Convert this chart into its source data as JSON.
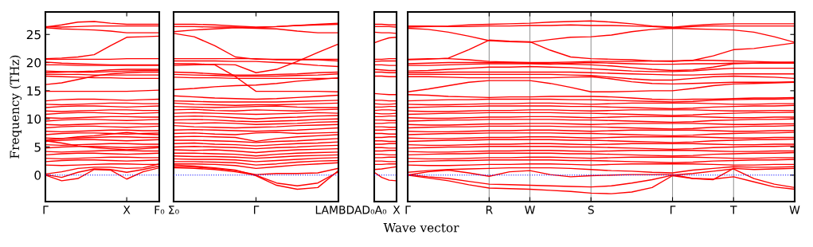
{
  "chart_data": [
    {
      "type": "line",
      "ylabel": "Frequency (THz)",
      "color": "#ff0000",
      "line_style": "solid",
      "marker": "none",
      "tick_labels": true,
      "categories": [
        "Γ",
        null,
        null,
        null,
        null,
        "X",
        null,
        "F₀"
      ],
      "ylim": [
        -4.7,
        29
      ],
      "yticks": [
        0,
        5,
        10,
        15,
        20,
        25
      ],
      "ref_lines": [
        {
          "axis": "y",
          "value": 0,
          "color": "#0000ff",
          "line_style": "dotted"
        }
      ],
      "series": [
        {
          "values": [
            26.3,
            26.7,
            27.2,
            27.3,
            27.0,
            26.8,
            26.8,
            26.8
          ]
        },
        {
          "values": [
            26.4,
            26.3,
            26.4,
            26.5,
            26.5,
            26.5,
            26.5,
            26.5
          ]
        },
        {
          "values": [
            26.2,
            26.0,
            25.9,
            25.8,
            25.6,
            25.3,
            25.3,
            25.3
          ]
        },
        {
          "values": [
            20.7,
            20.8,
            21.0,
            21.4,
            23.0,
            24.5,
            24.6,
            24.7
          ]
        },
        {
          "values": [
            20.6,
            20.6,
            20.6,
            20.6,
            20.6,
            20.7,
            20.7,
            20.7
          ]
        },
        {
          "values": [
            20.1,
            19.9,
            19.8,
            19.7,
            19.6,
            19.6,
            19.6,
            19.6
          ]
        },
        {
          "values": [
            19.6,
            19.6,
            19.5,
            19.5,
            19.5,
            19.5,
            19.5,
            19.5
          ]
        },
        {
          "values": [
            18.5,
            18.4,
            18.3,
            18.3,
            18.4,
            18.5,
            18.6,
            18.6
          ]
        },
        {
          "values": [
            18.2,
            18.3,
            18.4,
            18.5,
            18.7,
            18.8,
            18.8,
            18.8
          ]
        },
        {
          "values": [
            17.9,
            17.9,
            17.9,
            17.8,
            17.8,
            17.8,
            17.8,
            17.8
          ]
        },
        {
          "values": [
            17.6,
            17.5,
            17.4,
            17.3,
            17.3,
            17.2,
            17.2,
            17.2
          ]
        },
        {
          "values": [
            16.1,
            16.4,
            17.0,
            17.6,
            18.0,
            18.2,
            18.3,
            18.3
          ]
        },
        {
          "values": [
            14.9,
            14.9,
            14.9,
            14.9,
            14.9,
            14.9,
            15.0,
            15.1
          ]
        },
        {
          "values": [
            13.2,
            13.4,
            13.5,
            13.5,
            13.4,
            13.3,
            13.4,
            13.5
          ]
        },
        {
          "values": [
            12.6,
            12.5,
            12.6,
            12.7,
            12.8,
            12.8,
            12.7,
            12.7
          ]
        },
        {
          "values": [
            12.0,
            12.2,
            12.3,
            12.3,
            12.2,
            12.1,
            12.2,
            12.3
          ]
        },
        {
          "values": [
            11.4,
            11.3,
            11.4,
            11.5,
            11.6,
            11.6,
            11.5,
            11.5
          ]
        },
        {
          "values": [
            10.8,
            11.0,
            11.1,
            11.1,
            11.0,
            10.9,
            11.0,
            11.1
          ]
        },
        {
          "values": [
            10.2,
            10.1,
            10.2,
            10.3,
            10.4,
            10.4,
            10.3,
            10.3
          ]
        },
        {
          "values": [
            9.6,
            9.8,
            9.9,
            9.9,
            9.8,
            9.7,
            9.8,
            9.9
          ]
        },
        {
          "values": [
            9.0,
            8.9,
            9.0,
            9.1,
            9.2,
            9.2,
            9.1,
            9.1
          ]
        },
        {
          "values": [
            8.4,
            8.6,
            8.7,
            8.7,
            8.6,
            8.5,
            8.6,
            8.7
          ]
        },
        {
          "values": [
            7.8,
            7.7,
            7.8,
            7.9,
            8.0,
            8.0,
            7.9,
            7.9
          ]
        },
        {
          "values": [
            7.2,
            7.4,
            7.5,
            7.5,
            7.4,
            7.3,
            7.4,
            7.5
          ]
        },
        {
          "values": [
            6.6,
            6.5,
            6.6,
            6.7,
            6.8,
            6.8,
            6.7,
            6.7
          ]
        },
        {
          "values": [
            6.0,
            6.2,
            6.3,
            6.3,
            6.2,
            6.1,
            6.2,
            6.3
          ]
        },
        {
          "values": [
            6.2,
            6.5,
            6.8,
            7.0,
            7.3,
            7.6,
            7.3,
            7.2
          ]
        },
        {
          "values": [
            6.1,
            5.7,
            5.2,
            4.9,
            4.7,
            4.5,
            4.7,
            4.9
          ]
        },
        {
          "values": [
            5.4,
            5.3,
            5.4,
            5.5,
            5.6,
            5.6,
            5.5,
            5.5
          ]
        },
        {
          "values": [
            4.8,
            5.0,
            5.1,
            5.1,
            5.0,
            4.9,
            5.0,
            5.1
          ]
        },
        {
          "values": [
            4.2,
            4.1,
            4.2,
            4.3,
            4.4,
            4.4,
            4.3,
            4.3
          ]
        },
        {
          "values": [
            3.6,
            3.8,
            3.9,
            3.9,
            3.8,
            3.7,
            3.8,
            3.9
          ]
        },
        {
          "values": [
            3.0,
            2.9,
            3.0,
            3.1,
            3.2,
            3.2,
            3.1,
            3.1
          ]
        },
        {
          "values": [
            2.4,
            2.6,
            2.7,
            2.7,
            2.6,
            2.5,
            2.6,
            2.7
          ]
        },
        {
          "values": [
            1.8,
            1.7,
            1.8,
            1.9,
            2.0,
            2.0,
            1.9,
            1.9
          ]
        },
        {
          "values": [
            0,
            -1.0,
            -0.6,
            1.0,
            0.9,
            -0.7,
            0.6,
            1.3
          ]
        },
        {
          "values": [
            0.1,
            -0.4,
            0.5,
            1.1,
            1.0,
            0.5,
            1.0,
            1.6
          ]
        },
        {
          "values": [
            0.2,
            0.6,
            1.2,
            1.4,
            1.4,
            1.2,
            1.3,
            2.0
          ]
        }
      ]
    },
    {
      "type": "line",
      "color": "#ff0000",
      "line_style": "solid",
      "marker": "none",
      "tick_labels": "x",
      "categories": [
        "Σ₀",
        null,
        null,
        null,
        "Γ",
        null,
        null,
        null,
        "LAMBDA"
      ],
      "ylim": [
        -4.7,
        29
      ],
      "yticks": [
        0,
        5,
        10,
        15,
        20,
        25
      ],
      "ref_lines": [
        {
          "axis": "y",
          "value": 0,
          "color": "#0000ff",
          "line_style": "dotted"
        }
      ],
      "series": [
        {
          "values": [
            26.8,
            26.8,
            26.7,
            26.5,
            26.3,
            26.4,
            26.6,
            26.8,
            27.0
          ]
        },
        {
          "values": [
            26.4,
            26.4,
            26.3,
            26.3,
            26.2,
            26.4,
            26.6,
            26.7,
            26.8
          ]
        },
        {
          "values": [
            25.5,
            25.8,
            26.0,
            26.2,
            26.1,
            26.0,
            25.6,
            25.3,
            25.3
          ]
        },
        {
          "values": [
            25.2,
            24.6,
            23.0,
            21.0,
            20.6,
            20.6,
            20.6,
            20.6,
            20.6
          ]
        },
        {
          "values": [
            20.7,
            20.7,
            20.7,
            20.7,
            20.7,
            20.5,
            20.5,
            20.5,
            20.3
          ]
        },
        {
          "values": [
            20.3,
            20.3,
            20.3,
            20.2,
            20.2,
            20.0,
            19.8,
            19.5,
            19.3
          ]
        },
        {
          "values": [
            19.8,
            19.8,
            19.6,
            17.5,
            14.9,
            14.9,
            14.9,
            14.9,
            14.8
          ]
        },
        {
          "values": [
            19.5,
            19.6,
            19.7,
            19.6,
            18.2,
            18.8,
            20.2,
            21.8,
            23.3
          ]
        },
        {
          "values": [
            18.3,
            18.2,
            18.0,
            17.8,
            17.8,
            17.9,
            18.0,
            18.2,
            18.3
          ]
        },
        {
          "values": [
            17.9,
            17.8,
            17.7,
            17.6,
            17.6,
            17.6,
            17.7,
            17.8,
            18.0
          ]
        },
        {
          "values": [
            17.4,
            17.3,
            17.3,
            17.2,
            17.2,
            17.2,
            17.2,
            17.2,
            17.2
          ]
        },
        {
          "values": [
            15.2,
            15.4,
            15.7,
            15.9,
            16.0,
            16.3,
            16.7,
            17.0,
            17.3
          ]
        },
        {
          "values": [
            14.1,
            13.9,
            13.7,
            13.6,
            13.5,
            13.6,
            13.8,
            14.0,
            14.2
          ]
        },
        {
          "values": [
            13.2,
            13.1,
            13.0,
            13.0,
            13.0,
            13.0,
            13.1,
            13.2,
            13.3
          ]
        },
        {
          "values": [
            12.8,
            12.6,
            12.5,
            12.4,
            12.5,
            12.5,
            12.6,
            12.7,
            12.8
          ]
        },
        {
          "values": [
            12.2,
            12.1,
            12.0,
            12.1,
            12.2,
            12.3,
            12.1,
            12.0,
            12.0
          ]
        },
        {
          "values": [
            11.6,
            11.7,
            11.5,
            11.4,
            11.6,
            11.5,
            11.4,
            11.6,
            11.7
          ]
        },
        {
          "values": [
            11.0,
            11.1,
            11.0,
            10.9,
            10.8,
            10.9,
            11.0,
            11.1,
            11.0
          ]
        },
        {
          "values": [
            10.4,
            10.5,
            10.4,
            10.2,
            10.0,
            10.2,
            10.3,
            10.5,
            10.6
          ]
        },
        {
          "values": [
            9.8,
            9.9,
            9.8,
            9.6,
            9.5,
            9.6,
            9.7,
            9.9,
            10.0
          ]
        },
        {
          "values": [
            9.3,
            9.2,
            9.3,
            9.2,
            9.0,
            9.1,
            9.2,
            9.4,
            9.5
          ]
        },
        {
          "values": [
            8.8,
            8.6,
            8.5,
            8.4,
            8.5,
            8.6,
            8.8,
            8.9,
            9.0
          ]
        },
        {
          "values": [
            8.0,
            8.1,
            8.0,
            7.9,
            7.8,
            7.9,
            8.0,
            8.2,
            8.4
          ]
        },
        {
          "values": [
            7.4,
            7.5,
            7.3,
            7.2,
            7.5,
            7.6,
            7.4,
            7.5,
            7.6
          ]
        },
        {
          "values": [
            6.8,
            6.9,
            6.8,
            6.7,
            6.0,
            6.5,
            6.8,
            7.0,
            7.2
          ]
        },
        {
          "values": [
            6.2,
            6.2,
            6.1,
            6.0,
            5.8,
            6.0,
            6.1,
            6.3,
            6.5
          ]
        },
        {
          "values": [
            5.6,
            5.7,
            5.5,
            5.4,
            5.2,
            5.4,
            5.6,
            5.7,
            5.9
          ]
        },
        {
          "values": [
            5.0,
            5.1,
            5.0,
            4.9,
            4.7,
            4.9,
            5.0,
            5.2,
            5.3
          ]
        },
        {
          "values": [
            4.5,
            4.4,
            4.5,
            4.3,
            4.0,
            4.3,
            4.5,
            4.6,
            4.7
          ]
        },
        {
          "values": [
            3.9,
            3.9,
            3.8,
            3.7,
            3.4,
            3.7,
            3.9,
            4.0,
            4.1
          ]
        },
        {
          "values": [
            3.4,
            3.3,
            3.3,
            3.2,
            3.0,
            3.2,
            3.4,
            3.5,
            3.6
          ]
        },
        {
          "values": [
            2.9,
            2.8,
            2.8,
            2.7,
            2.4,
            2.6,
            2.8,
            3.0,
            3.1
          ]
        },
        {
          "values": [
            2.4,
            2.4,
            2.3,
            2.2,
            1.8,
            2.0,
            2.3,
            2.5,
            2.6
          ]
        },
        {
          "values": [
            2.0,
            2.0,
            1.9,
            1.7,
            1.2,
            1.5,
            1.8,
            2.0,
            2.2
          ]
        },
        {
          "values": [
            1.5,
            1.4,
            1.2,
            0.8,
            0.1,
            0.3,
            0.3,
            0.4,
            1.2
          ]
        },
        {
          "values": [
            1.3,
            1.2,
            1.0,
            0.6,
            0,
            -1.4,
            -1.9,
            -1.4,
            0.6
          ]
        },
        {
          "values": [
            1.8,
            1.6,
            1.3,
            0.9,
            -0.1,
            -1.8,
            -2.5,
            -2.2,
            0.8
          ]
        }
      ]
    },
    {
      "type": "line",
      "color": "#ff0000",
      "line_style": "solid",
      "marker": "none",
      "tick_labels": "x",
      "categories": [
        "D₀A₀",
        null,
        null,
        "X"
      ],
      "ylim": [
        -4.7,
        29
      ],
      "yticks": [
        0,
        5,
        10,
        15,
        20,
        25
      ],
      "ref_lines": [
        {
          "axis": "y",
          "value": 0,
          "color": "#0000ff",
          "line_style": "dotted"
        }
      ],
      "series": [
        {
          "values": [
            26.8,
            26.8,
            26.7,
            26.7
          ]
        },
        {
          "values": [
            26.4,
            26.4,
            26.4,
            26.3
          ]
        },
        {
          "values": [
            25.4,
            25.3,
            25.3,
            25.2
          ]
        },
        {
          "values": [
            23.5,
            24.0,
            24.4,
            24.5
          ]
        },
        {
          "values": [
            20.6,
            20.6,
            20.7,
            20.7
          ]
        },
        {
          "values": [
            20.2,
            20.3,
            20.3,
            20.3
          ]
        },
        {
          "values": [
            19.6,
            19.6,
            19.5,
            19.5
          ]
        },
        {
          "values": [
            18.8,
            18.7,
            18.6,
            18.6
          ]
        },
        {
          "values": [
            18.3,
            18.3,
            18.2,
            18.2
          ]
        },
        {
          "values": [
            17.6,
            17.6,
            17.5,
            17.5
          ]
        },
        {
          "values": [
            14.5,
            14.4,
            14.3,
            14.3
          ]
        },
        {
          "values": [
            13.3,
            13.3,
            13.2,
            13.2
          ]
        },
        {
          "values": [
            12.7,
            12.6,
            12.6,
            12.7
          ]
        },
        {
          "values": [
            12.1,
            12.1,
            12.2,
            12.2
          ]
        },
        {
          "values": [
            11.5,
            11.6,
            11.6,
            11.5
          ]
        },
        {
          "values": [
            11.0,
            10.9,
            10.9,
            11.0
          ]
        },
        {
          "values": [
            10.4,
            10.4,
            10.5,
            10.5
          ]
        },
        {
          "values": [
            9.8,
            9.8,
            9.7,
            9.7
          ]
        },
        {
          "values": [
            9.2,
            9.2,
            9.3,
            9.3
          ]
        },
        {
          "values": [
            8.6,
            8.6,
            8.5,
            8.5
          ]
        },
        {
          "values": [
            8.0,
            8.0,
            8.1,
            8.1
          ]
        },
        {
          "values": [
            7.4,
            7.4,
            7.3,
            7.3
          ]
        },
        {
          "values": [
            6.7,
            6.7,
            6.8,
            6.8
          ]
        },
        {
          "values": [
            6.1,
            6.1,
            6.0,
            6.0
          ]
        },
        {
          "values": [
            5.5,
            5.5,
            5.6,
            5.6
          ]
        },
        {
          "values": [
            4.9,
            4.9,
            4.8,
            4.8
          ]
        },
        {
          "values": [
            4.3,
            4.3,
            4.4,
            4.4
          ]
        },
        {
          "values": [
            3.7,
            3.7,
            3.6,
            3.6
          ]
        },
        {
          "values": [
            3.1,
            3.1,
            3.2,
            3.2
          ]
        },
        {
          "values": [
            2.5,
            2.5,
            2.4,
            2.4
          ]
        },
        {
          "values": [
            1.9,
            1.9,
            2.0,
            2.0
          ]
        },
        {
          "values": [
            0.5,
            -0.4,
            -0.9,
            -1.0
          ]
        },
        {
          "values": [
            1.0,
            1.1,
            1.3,
            1.5
          ]
        }
      ]
    },
    {
      "type": "line",
      "color": "#ff0000",
      "line_style": "solid",
      "marker": "none",
      "grid": "x",
      "tick_labels": "x",
      "xlabel": "Wave vector",
      "categories": [
        "Γ",
        null,
        null,
        null,
        "R",
        null,
        "W",
        null,
        null,
        "S",
        null,
        null,
        null,
        "Γ",
        null,
        null,
        "T",
        null,
        null,
        "W"
      ],
      "ylim": [
        -4.7,
        29
      ],
      "yticks": [
        0,
        5,
        10,
        15,
        20,
        25
      ],
      "ref_lines": [
        {
          "axis": "y",
          "value": 0,
          "color": "#0000ff",
          "line_style": "dotted"
        }
      ],
      "series": [
        {
          "values": [
            26.3,
            26.4,
            26.5,
            26.7,
            26.8,
            26.9,
            27.0,
            27.2,
            27.3,
            27.4,
            27.2,
            26.9,
            26.5,
            26.3,
            26.6,
            26.8,
            26.9,
            26.9,
            26.9,
            26.9
          ]
        },
        {
          "values": [
            26.5,
            26.5,
            26.4,
            26.4,
            26.5,
            26.5,
            26.6,
            26.6,
            26.7,
            26.6,
            26.6,
            26.5,
            26.4,
            26.2,
            26.4,
            26.5,
            26.5,
            26.5,
            26.5,
            26.5
          ]
        },
        {
          "values": [
            26.1,
            25.9,
            25.4,
            24.7,
            23.9,
            23.7,
            23.6,
            24.1,
            24.5,
            24.6,
            24.9,
            25.5,
            25.9,
            26.1,
            26.0,
            25.9,
            25.8,
            25.4,
            24.6,
            23.6
          ]
        },
        {
          "values": [
            20.5,
            20.6,
            20.8,
            22.3,
            24.0,
            23.8,
            23.7,
            22.2,
            21.0,
            20.7,
            20.6,
            20.5,
            20.3,
            20.2,
            20.4,
            21.2,
            22.3,
            22.5,
            23.0,
            23.5
          ]
        },
        {
          "values": [
            20.6,
            20.7,
            20.7,
            20.5,
            20.2,
            20.1,
            20.0,
            20.0,
            20.1,
            20.2,
            20.2,
            20.2,
            20.3,
            20.3,
            20.4,
            20.4,
            20.3,
            20.2,
            20.1,
            20.0
          ]
        },
        {
          "values": [
            19.8,
            19.9,
            20.0,
            20.0,
            20.0,
            20.0,
            19.9,
            19.8,
            19.7,
            19.6,
            19.4,
            19.1,
            18.8,
            18.6,
            18.7,
            19.2,
            19.8,
            19.9,
            20.0,
            20.1
          ]
        },
        {
          "values": [
            19.5,
            19.5,
            19.6,
            19.7,
            19.8,
            19.8,
            19.8,
            19.7,
            19.9,
            20.0,
            19.9,
            19.8,
            19.7,
            19.7,
            19.8,
            19.8,
            19.9,
            19.9,
            19.9,
            19.9
          ]
        },
        {
          "values": [
            18.5,
            18.6,
            18.8,
            19.0,
            19.2,
            19.2,
            19.3,
            19.2,
            19.1,
            18.9,
            18.7,
            18.5,
            18.4,
            18.4,
            18.5,
            18.8,
            19.0,
            19.0,
            19.0,
            19.0
          ]
        },
        {
          "values": [
            18.2,
            18.2,
            18.3,
            18.3,
            18.3,
            18.3,
            18.3,
            18.3,
            18.3,
            18.2,
            18.1,
            18.0,
            17.9,
            17.8,
            17.8,
            17.9,
            18.0,
            18.0,
            18.0,
            18.0
          ]
        },
        {
          "values": [
            17.9,
            17.9,
            17.9,
            17.9,
            17.9,
            17.9,
            17.9,
            17.9,
            17.8,
            17.7,
            17.4,
            17.1,
            16.9,
            16.9,
            17.2,
            17.5,
            17.6,
            17.5,
            17.4,
            17.2
          ]
        },
        {
          "values": [
            17.5,
            17.5,
            17.4,
            17.3,
            17.3,
            17.3,
            17.3,
            17.3,
            17.4,
            17.5,
            17.1,
            16.6,
            16.3,
            16.2,
            16.3,
            16.4,
            16.5,
            16.5,
            16.5,
            16.6
          ]
        },
        {
          "values": [
            14.8,
            15.3,
            15.9,
            16.5,
            16.8,
            16.8,
            16.8,
            16.3,
            15.6,
            14.8,
            14.8,
            14.9,
            15.0,
            15.0,
            15.4,
            15.9,
            16.2,
            16.3,
            16.4,
            16.5
          ]
        },
        {
          "values": [
            14.3,
            14.2,
            14.0,
            13.9,
            13.8,
            13.9,
            13.9,
            14.0,
            14.0,
            14.0,
            13.9,
            13.7,
            13.5,
            13.4,
            13.5,
            13.5,
            13.6,
            13.7,
            13.7,
            13.8
          ]
        },
        {
          "values": [
            13.2,
            13.3,
            13.4,
            13.4,
            13.5,
            13.5,
            13.5,
            13.5,
            13.4,
            13.4,
            13.3,
            13.2,
            13.1,
            13.0,
            13.1,
            13.3,
            13.4,
            13.5,
            13.5,
            13.6
          ]
        },
        {
          "values": [
            12.6,
            12.5,
            12.5,
            12.6,
            12.7,
            12.7,
            12.8,
            12.8,
            12.7,
            12.6,
            12.7,
            12.8,
            12.8,
            12.8,
            12.8,
            12.7,
            12.6,
            12.6,
            12.7,
            12.7
          ]
        },
        {
          "values": [
            12.0,
            12.1,
            12.2,
            12.2,
            12.3,
            12.3,
            12.3,
            12.3,
            12.2,
            12.2,
            12.1,
            12.0,
            11.9,
            11.8,
            11.9,
            12.1,
            12.2,
            12.3,
            12.3,
            12.4
          ]
        },
        {
          "values": [
            11.4,
            11.3,
            11.3,
            11.4,
            11.5,
            11.5,
            11.6,
            11.6,
            11.5,
            11.4,
            11.5,
            11.6,
            11.6,
            11.6,
            11.6,
            11.5,
            11.4,
            11.4,
            11.5,
            11.5
          ]
        },
        {
          "values": [
            10.8,
            10.9,
            11.0,
            11.0,
            11.1,
            11.1,
            11.1,
            11.1,
            11.0,
            11.0,
            10.9,
            10.8,
            10.7,
            10.6,
            10.7,
            10.9,
            11.0,
            11.1,
            11.1,
            11.2
          ]
        },
        {
          "values": [
            10.2,
            10.1,
            10.1,
            10.2,
            10.3,
            10.3,
            10.4,
            10.4,
            10.3,
            10.2,
            10.3,
            10.4,
            10.4,
            10.4,
            10.4,
            10.3,
            10.2,
            10.2,
            10.3,
            10.3
          ]
        },
        {
          "values": [
            9.6,
            9.7,
            9.8,
            9.8,
            9.9,
            9.9,
            9.9,
            9.9,
            9.8,
            9.8,
            9.7,
            9.6,
            9.5,
            9.4,
            9.5,
            9.7,
            9.8,
            9.9,
            9.9,
            10.0
          ]
        },
        {
          "values": [
            9.0,
            8.9,
            8.9,
            9.0,
            9.1,
            9.1,
            9.2,
            9.2,
            9.1,
            9.0,
            9.1,
            9.2,
            9.2,
            9.2,
            9.2,
            9.1,
            9.0,
            9.0,
            9.1,
            9.1
          ]
        },
        {
          "values": [
            8.4,
            8.5,
            8.6,
            8.6,
            8.7,
            8.7,
            8.7,
            8.7,
            8.6,
            8.6,
            8.5,
            8.4,
            8.3,
            8.2,
            8.3,
            8.5,
            8.6,
            8.7,
            8.7,
            8.8
          ]
        },
        {
          "values": [
            7.8,
            7.7,
            7.7,
            7.8,
            7.9,
            7.9,
            8.0,
            8.0,
            7.9,
            7.8,
            7.9,
            8.0,
            8.0,
            8.0,
            8.0,
            7.9,
            7.8,
            7.8,
            7.9,
            7.9
          ]
        },
        {
          "values": [
            7.2,
            7.3,
            7.4,
            7.4,
            7.5,
            7.5,
            7.5,
            7.5,
            7.4,
            7.4,
            7.3,
            7.2,
            7.1,
            7.0,
            7.1,
            7.3,
            7.4,
            7.5,
            7.5,
            7.6
          ]
        },
        {
          "values": [
            6.6,
            6.5,
            6.5,
            6.6,
            6.7,
            6.7,
            6.8,
            6.8,
            6.7,
            6.6,
            6.7,
            6.8,
            6.8,
            6.8,
            6.8,
            6.7,
            6.6,
            6.6,
            6.7,
            6.7
          ]
        },
        {
          "values": [
            6.0,
            6.1,
            6.2,
            6.2,
            6.3,
            6.3,
            6.3,
            6.3,
            6.2,
            6.2,
            6.1,
            6.0,
            5.9,
            5.8,
            5.9,
            6.1,
            6.2,
            6.3,
            6.3,
            6.4
          ]
        },
        {
          "values": [
            5.4,
            5.3,
            5.3,
            5.4,
            5.5,
            5.5,
            5.6,
            5.6,
            5.5,
            5.4,
            5.5,
            5.6,
            5.6,
            5.6,
            5.6,
            5.5,
            5.4,
            5.4,
            5.5,
            5.5
          ]
        },
        {
          "values": [
            4.8,
            4.9,
            5.0,
            5.0,
            5.1,
            5.1,
            5.1,
            5.1,
            5.0,
            5.0,
            4.9,
            4.8,
            4.7,
            4.6,
            4.7,
            4.9,
            5.0,
            5.1,
            5.1,
            5.2
          ]
        },
        {
          "values": [
            4.2,
            4.1,
            4.1,
            4.2,
            4.3,
            4.3,
            4.4,
            4.4,
            4.3,
            4.2,
            4.3,
            4.4,
            4.4,
            4.4,
            4.4,
            4.3,
            4.2,
            4.2,
            4.3,
            4.3
          ]
        },
        {
          "values": [
            3.6,
            3.7,
            3.8,
            3.8,
            3.9,
            3.9,
            3.9,
            3.9,
            3.8,
            3.8,
            3.7,
            3.6,
            3.5,
            3.4,
            3.5,
            3.7,
            3.8,
            3.9,
            3.9,
            4.0
          ]
        },
        {
          "values": [
            3.0,
            2.9,
            2.9,
            3.0,
            3.1,
            3.1,
            3.2,
            3.2,
            3.1,
            3.0,
            3.1,
            3.2,
            3.2,
            3.2,
            3.2,
            3.1,
            3.0,
            3.0,
            3.1,
            3.1
          ]
        },
        {
          "values": [
            2.4,
            2.5,
            2.6,
            2.6,
            2.7,
            2.7,
            2.7,
            2.7,
            2.6,
            2.6,
            2.5,
            2.4,
            2.3,
            2.2,
            2.3,
            2.5,
            2.6,
            2.7,
            2.7,
            2.8
          ]
        },
        {
          "values": [
            1.8,
            1.7,
            1.7,
            1.8,
            1.9,
            1.9,
            2.0,
            2.0,
            1.9,
            1.8,
            1.9,
            2.0,
            2.0,
            2.0,
            2.0,
            1.9,
            1.8,
            1.8,
            1.9,
            1.9
          ]
        },
        {
          "values": [
            0,
            -0.5,
            -1.0,
            -1.7,
            -2.3,
            -2.4,
            -2.5,
            -2.7,
            -2.9,
            -3.2,
            -3.3,
            -3.0,
            -2.2,
            -0.1,
            -0.6,
            -0.7,
            -0.3,
            -1.2,
            -2.1,
            -2.5
          ]
        },
        {
          "values": [
            0.1,
            -0.3,
            -0.6,
            -1.1,
            -1.6,
            -1.7,
            -1.8,
            -1.9,
            -2.0,
            -2.1,
            -1.9,
            -1.4,
            -0.8,
            0,
            0.3,
            0.7,
            1.1,
            -0.6,
            -1.6,
            -2.2
          ]
        },
        {
          "values": [
            0,
            0.6,
            0.9,
            0.4,
            -0.2,
            0.6,
            0.8,
            0.1,
            -0.3,
            -0.1,
            0,
            0.1,
            0.1,
            0.1,
            -0.6,
            -0.8,
            1.2,
            1.0,
            1.1,
            1.2
          ]
        },
        {
          "values": [
            0.5,
            0.8,
            1.0,
            1.1,
            1.2,
            1.3,
            1.3,
            1.3,
            1.2,
            1.0,
            0.8,
            0.7,
            0.5,
            0.4,
            0.9,
            1.2,
            1.5,
            1.4,
            1.4,
            1.5
          ]
        }
      ]
    }
  ]
}
